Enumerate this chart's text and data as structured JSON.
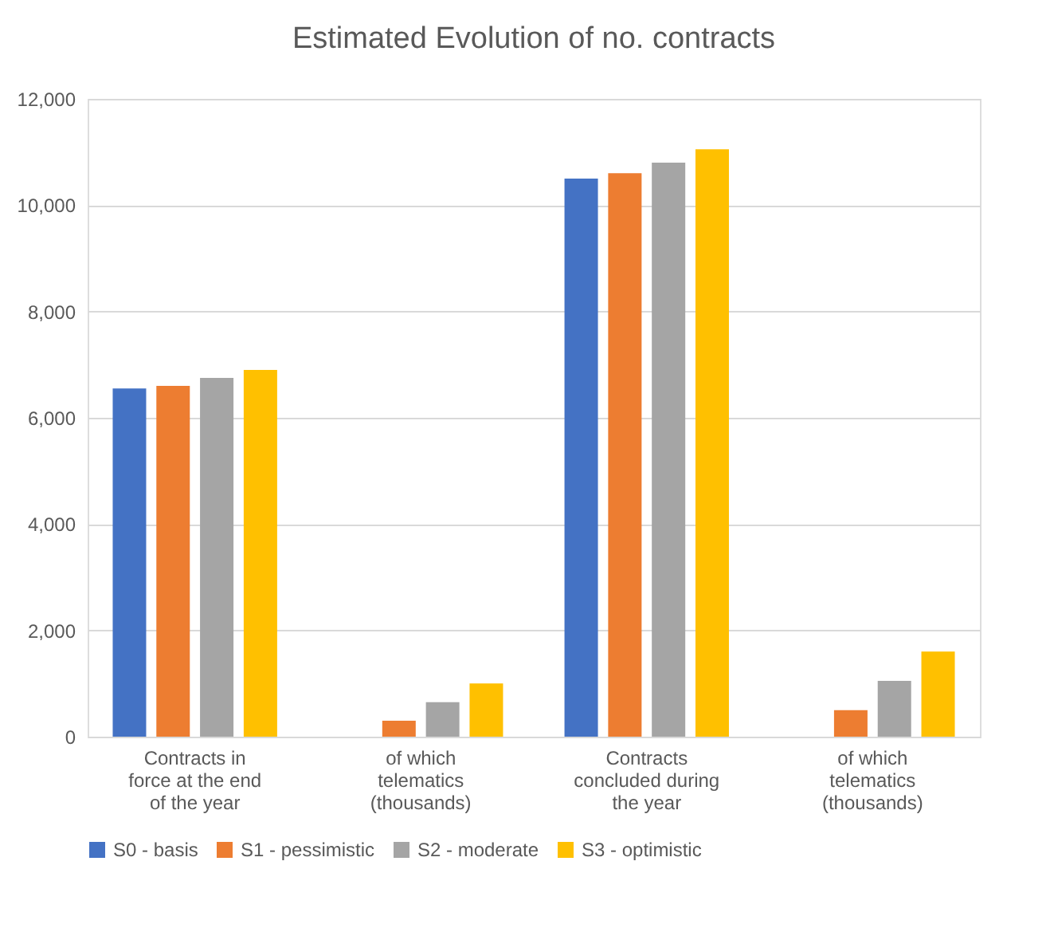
{
  "chart_data": {
    "type": "bar",
    "title": "Estimated Evolution of no. contracts",
    "categories": [
      "Contracts in force at the end of the year",
      "of which telematics (thousands)",
      "Contracts concluded during the year",
      "of which telematics (thousands)"
    ],
    "series": [
      {
        "name": "S0 - basis",
        "color": "#4472c4",
        "values": [
          6550,
          0,
          10500,
          0
        ]
      },
      {
        "name": "S1 - pessimistic",
        "color": "#ed7d31",
        "values": [
          6600,
          300,
          10600,
          500
        ]
      },
      {
        "name": "S2 - moderate",
        "color": "#a5a5a5",
        "values": [
          6750,
          650,
          10800,
          1050
        ]
      },
      {
        "name": "S3 - optimistic",
        "color": "#ffc000",
        "values": [
          6900,
          1000,
          11050,
          1600
        ]
      }
    ],
    "ylim": [
      0,
      12000
    ],
    "yticks": [
      {
        "value": 0,
        "label": "0"
      },
      {
        "value": 2000,
        "label": "2,000"
      },
      {
        "value": 4000,
        "label": "4,000"
      },
      {
        "value": 6000,
        "label": "6,000"
      },
      {
        "value": 8000,
        "label": "8,000"
      },
      {
        "value": 10000,
        "label": "10,000"
      },
      {
        "value": 12000,
        "label": "12,000"
      }
    ],
    "grid": "y",
    "legend": "bottom"
  }
}
